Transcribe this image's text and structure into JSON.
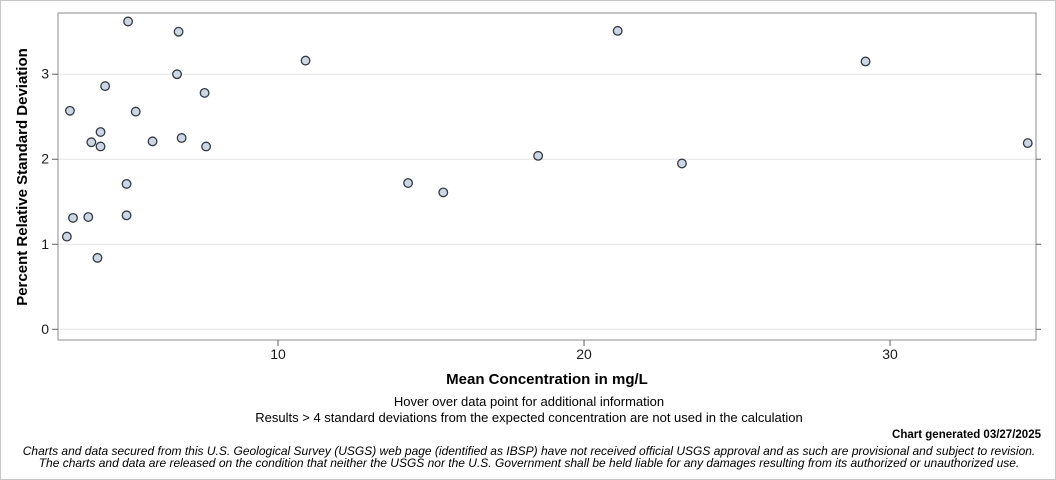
{
  "chart_data": {
    "type": "scatter",
    "title": "",
    "xlabel": "Mean Concentration in mg/L",
    "ylabel": "Percent Relative Standard Deviation",
    "xlim": [
      2.81,
      34.77
    ],
    "ylim": [
      -0.126,
      3.72
    ],
    "xticks": [
      10,
      20,
      30
    ],
    "yticks": [
      0,
      1,
      2,
      3
    ],
    "grid": "horizontal-only",
    "legend": "none",
    "points": [
      [
        5.1,
        3.62
      ],
      [
        6.75,
        3.5
      ],
      [
        6.7,
        3.0
      ],
      [
        4.35,
        2.86
      ],
      [
        7.6,
        2.78
      ],
      [
        3.2,
        2.57
      ],
      [
        5.35,
        2.56
      ],
      [
        4.2,
        2.32
      ],
      [
        3.9,
        2.2
      ],
      [
        4.2,
        2.15
      ],
      [
        5.9,
        2.21
      ],
      [
        6.85,
        2.25
      ],
      [
        7.65,
        2.15
      ],
      [
        5.05,
        1.71
      ],
      [
        3.3,
        1.31
      ],
      [
        3.8,
        1.32
      ],
      [
        5.05,
        1.34
      ],
      [
        3.1,
        1.09
      ],
      [
        4.1,
        0.84
      ],
      [
        10.9,
        3.16
      ],
      [
        21.1,
        3.51
      ],
      [
        29.2,
        3.15
      ],
      [
        14.25,
        1.72
      ],
      [
        15.4,
        1.61
      ],
      [
        18.5,
        2.04
      ],
      [
        23.2,
        1.95
      ],
      [
        34.5,
        2.19
      ]
    ]
  },
  "footer": {
    "hover_note": "Hover over data point for additional information",
    "results_note": "Results > 4 standard deviations from the expected concentration are not used in the calculation",
    "generated": "Chart generated 03/27/2025",
    "disclaimer_line1": "Charts and data secured from this U.S. Geological Survey (USGS) web page (identified as IBSP) have not received official USGS approval and as such are provisional and subject to revision.",
    "disclaimer_line2": "The charts and data are released on the condition that neither the USGS nor the U.S. Government shall be held liable for any damages resulting from its authorized or unauthorized use."
  },
  "colors": {
    "gridline": "#e4e4e4",
    "plot_border": "#8e8e8e",
    "tick": "#5f5f5f",
    "tick_label": "#1a1a1a",
    "marker_fill": "#cdd7e4",
    "marker_stroke": "#333a45",
    "page_border": "#c6c6c6"
  }
}
